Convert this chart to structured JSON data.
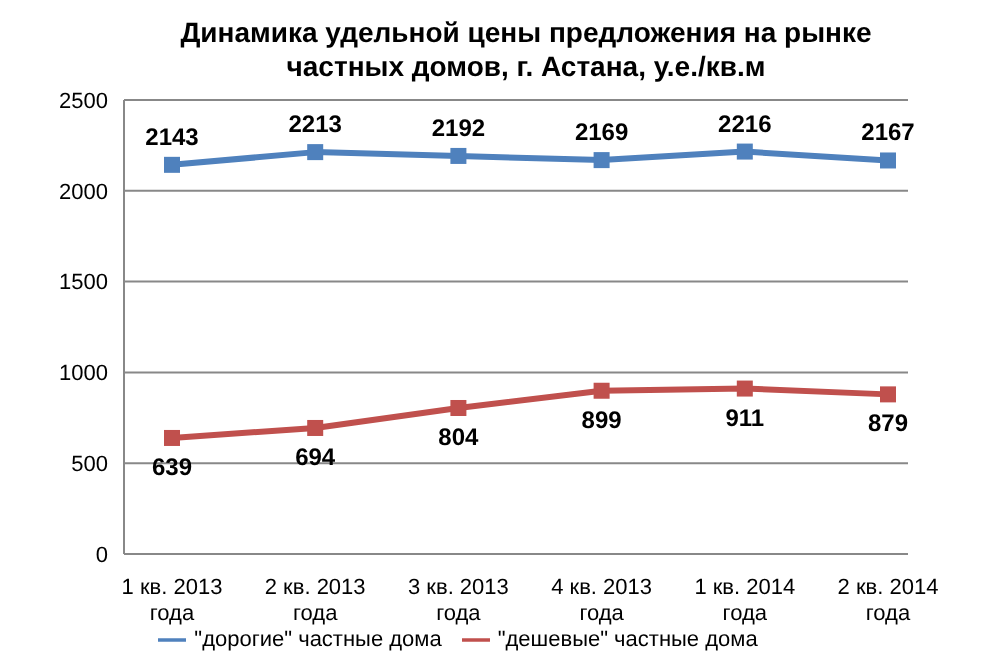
{
  "chart_data": {
    "type": "line",
    "title": "Динамика удельной цены предложения на рынке частных домов, г. Астана, у.е./кв.м",
    "categories": [
      "1 кв. 2013 года",
      "2 кв. 2013 года",
      "3 кв. 2013 года",
      "4 кв. 2013 года",
      "1 кв. 2014 года",
      "2 кв. 2014 года"
    ],
    "series": [
      {
        "name": "\"дорогие\" частные дома",
        "color": "#4f81bd",
        "values": [
          2143,
          2213,
          2192,
          2169,
          2216,
          2167
        ]
      },
      {
        "name": "\"дешевые\" частные дома",
        "color": "#c0504d",
        "values": [
          639,
          694,
          804,
          899,
          911,
          879
        ]
      }
    ],
    "ylim": [
      0,
      2500
    ],
    "yticks": [
      0,
      500,
      1000,
      1500,
      2000,
      2500
    ],
    "grid": "y",
    "legend": "bottom",
    "marker": "square",
    "line_style": "solid",
    "data_labels": true
  }
}
